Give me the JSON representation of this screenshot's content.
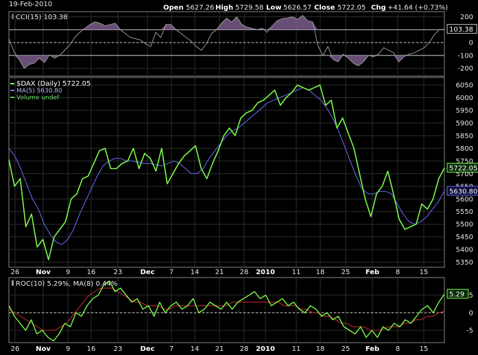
{
  "header": {
    "date": "19-Feb-2010",
    "open_label": "Open",
    "open_value": "5627.26",
    "high_label": "High",
    "high_value": "5729.58",
    "low_label": "Low",
    "low_value": "5626.57",
    "close_label": "Close",
    "close_value": "5722.05",
    "chg_label": "Chg",
    "chg_value": "+41.64 (+0.73%)"
  },
  "colors": {
    "price": "#7cfc4c",
    "ma": "#6f6fff",
    "cci_line": "#9a9a9a",
    "cci_fill": "#7a5a8a",
    "roc": "#7cfc4c",
    "roc_ma": "#d03030",
    "grid": "#2e2e2e",
    "border": "#8a8a8a"
  },
  "chart_data": [
    {
      "type": "line",
      "title": "CCI(15) 103.38",
      "ylim": [
        -260,
        240
      ],
      "yticks": [
        "200",
        "100",
        "0",
        "-100",
        "-200"
      ],
      "last_value_label": "103.38",
      "series": [
        {
          "name": "CCI(15)",
          "values": [
            30,
            -70,
            -130,
            -200,
            -170,
            -160,
            -120,
            -155,
            -95,
            -120,
            -100,
            -60,
            -20,
            40,
            80,
            110,
            140,
            160,
            150,
            130,
            140,
            150,
            100,
            70,
            40,
            30,
            20,
            -10,
            -30,
            80,
            40,
            140,
            140,
            100,
            70,
            40,
            10,
            -30,
            -60,
            -10,
            70,
            100,
            150,
            190,
            160,
            200,
            140,
            120,
            110,
            100,
            110,
            80,
            130,
            170,
            185,
            190,
            200,
            180,
            210,
            170,
            160,
            -20,
            -100,
            -30,
            -130,
            -150,
            -90,
            -120,
            -160,
            -180,
            -150,
            -100,
            -110,
            -90,
            -40,
            -60,
            -80,
            -150,
            -110,
            -90,
            -80,
            -60,
            -40,
            0,
            60,
            100,
            103.38
          ]
        }
      ]
    },
    {
      "type": "line",
      "title": "$DAX (Daily) 5722.05",
      "ylim": [
        5330,
        6080
      ],
      "yticks": [
        "6050",
        "6000",
        "5950",
        "5900",
        "5850",
        "5800",
        "5750",
        "5700",
        "5650",
        "5600",
        "5550",
        "5500",
        "5450",
        "5400",
        "5350"
      ],
      "price_label": "5722.05",
      "ma_label": "5630.80",
      "legend": [
        "$DAX (Daily) 5722.05",
        "MA(5) 5630.80",
        "Volume undef"
      ],
      "series": [
        {
          "name": "$DAX (Daily)",
          "values": [
            5755,
            5650,
            5680,
            5490,
            5540,
            5410,
            5440,
            5360,
            5450,
            5480,
            5510,
            5600,
            5620,
            5680,
            5690,
            5740,
            5790,
            5800,
            5720,
            5720,
            5740,
            5750,
            5800,
            5720,
            5780,
            5760,
            5710,
            5800,
            5660,
            5700,
            5740,
            5770,
            5790,
            5810,
            5720,
            5680,
            5740,
            5790,
            5850,
            5880,
            5850,
            5920,
            5940,
            5950,
            5980,
            5990,
            6010,
            6030,
            5970,
            6000,
            6020,
            6050,
            6040,
            6030,
            6040,
            6050,
            5970,
            5990,
            5880,
            5920,
            5860,
            5800,
            5700,
            5600,
            5530,
            5620,
            5650,
            5710,
            5620,
            5520,
            5480,
            5490,
            5500,
            5580,
            5560,
            5600,
            5680,
            5722.05
          ]
        },
        {
          "name": "MA(5)",
          "values": [
            5800,
            5770,
            5720,
            5660,
            5600,
            5560,
            5500,
            5460,
            5430,
            5420,
            5440,
            5480,
            5540,
            5590,
            5640,
            5690,
            5730,
            5750,
            5760,
            5760,
            5750,
            5750,
            5745,
            5740,
            5740,
            5735,
            5730,
            5740,
            5750,
            5740,
            5720,
            5700,
            5700,
            5720,
            5760,
            5790,
            5820,
            5850,
            5870,
            5880,
            5900,
            5920,
            5940,
            5960,
            5980,
            5990,
            6000,
            6010,
            6020,
            6030,
            6040,
            6030,
            6010,
            5990,
            5960,
            5920,
            5870,
            5810,
            5750,
            5690,
            5640,
            5620,
            5620,
            5630,
            5630,
            5620,
            5580,
            5540,
            5510,
            5500,
            5510,
            5530,
            5560,
            5590,
            5630.8
          ]
        }
      ]
    },
    {
      "type": "line",
      "title": "ROC(10) 5.29%, MA(8) 0.44%",
      "ylim": [
        -8.5,
        10
      ],
      "yticks": [
        "5",
        "0",
        "-5"
      ],
      "last_value_label": "5.29",
      "series": [
        {
          "name": "ROC(10)",
          "values": [
            2,
            -1,
            -3,
            -5,
            -2,
            -6,
            -5,
            -7,
            -8,
            -6,
            -3,
            -4,
            0,
            -1,
            2,
            4,
            5,
            8,
            9,
            6,
            7,
            5,
            3,
            4,
            1,
            2,
            -1,
            3,
            0,
            2,
            3,
            1,
            2,
            4,
            0,
            1,
            3,
            2,
            1,
            3,
            1,
            3,
            4,
            5,
            6,
            4,
            5,
            2,
            3,
            4,
            2,
            3,
            1,
            0,
            2,
            1,
            -1,
            0,
            -2,
            -1,
            -4,
            -5,
            -6,
            -4,
            -7,
            -5,
            -7,
            -4,
            -5,
            -3,
            -4,
            -2,
            -3,
            -1,
            1,
            2,
            0,
            3,
            5.29
          ]
        },
        {
          "name": "MA(8)",
          "values": [
            1,
            0,
            -1,
            -2,
            -3,
            -4,
            -5,
            -5,
            -5,
            -4,
            -3,
            -1,
            1,
            3,
            5,
            6,
            7,
            7,
            7,
            6,
            5,
            4,
            3,
            3,
            2,
            2,
            2,
            1,
            1,
            2,
            2,
            2,
            2,
            2,
            2,
            2,
            2,
            2,
            2,
            3,
            3,
            3,
            3,
            3,
            3,
            3,
            3,
            3,
            2,
            2,
            2,
            1,
            1,
            0,
            0,
            -1,
            -1,
            -2,
            -3,
            -3,
            -4,
            -4,
            -4,
            -5,
            -5,
            -5,
            -4,
            -4,
            -4,
            -3,
            -3,
            -2,
            -2,
            -1,
            -1,
            0,
            0.44
          ]
        }
      ]
    }
  ],
  "x_axis": {
    "labels": [
      {
        "text": "26",
        "bold": false
      },
      {
        "text": "Nov",
        "bold": true
      },
      {
        "text": "9",
        "bold": false
      },
      {
        "text": "16",
        "bold": false
      },
      {
        "text": "23",
        "bold": false
      },
      {
        "text": "Dec",
        "bold": true
      },
      {
        "text": "7",
        "bold": false
      },
      {
        "text": "14",
        "bold": false
      },
      {
        "text": "21",
        "bold": false
      },
      {
        "text": "28",
        "bold": false
      },
      {
        "text": "2010",
        "bold": true
      },
      {
        "text": "11",
        "bold": false
      },
      {
        "text": "18",
        "bold": false
      },
      {
        "text": "25",
        "bold": false
      },
      {
        "text": "Feb",
        "bold": true
      },
      {
        "text": "8",
        "bold": false
      },
      {
        "text": "15",
        "bold": false
      }
    ]
  }
}
